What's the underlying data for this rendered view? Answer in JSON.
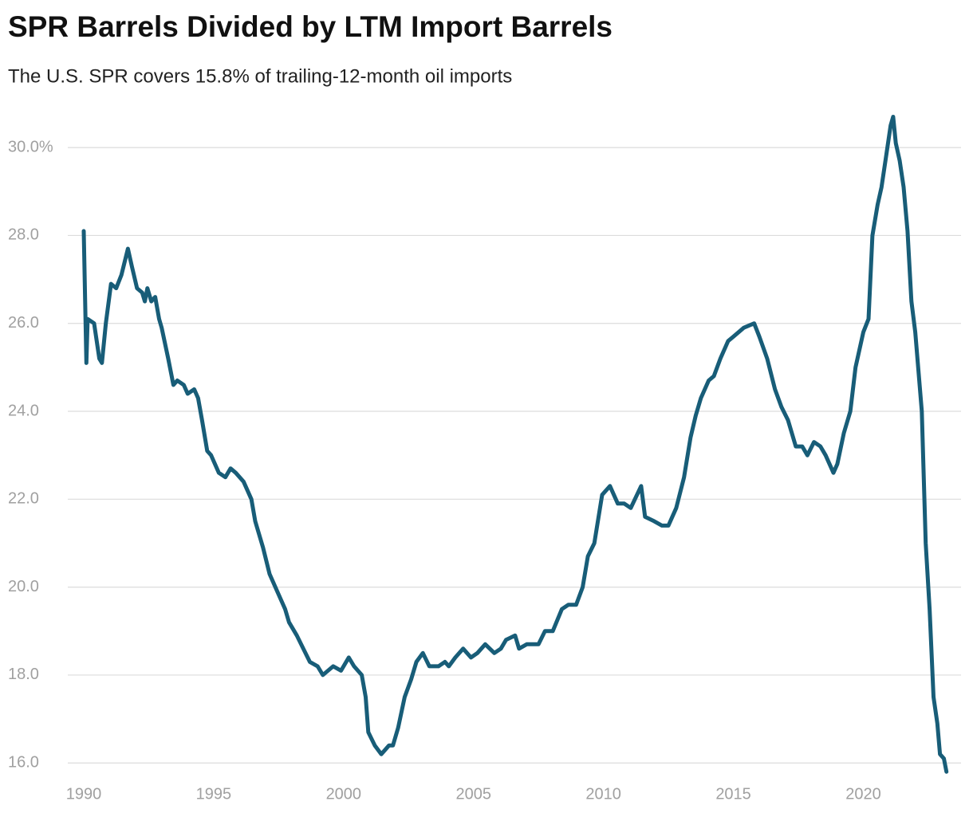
{
  "chart_data": {
    "type": "line",
    "title": "SPR Barrels Divided by LTM Import Barrels",
    "subtitle": "The U.S. SPR covers 15.8% of trailing-12-month oil imports",
    "x": [
      1990.0,
      1990.1,
      1990.15,
      1990.4,
      1990.6,
      1990.7,
      1990.85,
      1991.05,
      1991.25,
      1991.45,
      1991.7,
      1991.85,
      1992.05,
      1992.25,
      1992.35,
      1992.45,
      1992.6,
      1992.75,
      1992.9,
      1993.0,
      1993.25,
      1993.45,
      1993.6,
      1993.85,
      1994.0,
      1994.25,
      1994.4,
      1994.55,
      1994.75,
      1994.9,
      1995.2,
      1995.45,
      1995.65,
      1995.85,
      1996.15,
      1996.45,
      1996.6,
      1996.9,
      1997.15,
      1997.45,
      1997.75,
      1997.9,
      1998.2,
      1998.45,
      1998.7,
      1999.0,
      1999.2,
      1999.6,
      1999.9,
      2000.2,
      2000.4,
      2000.7,
      2000.85,
      2000.95,
      2001.2,
      2001.45,
      2001.75,
      2001.9,
      2002.1,
      2002.35,
      2002.6,
      2002.8,
      2003.05,
      2003.3,
      2003.65,
      2003.9,
      2004.05,
      2004.3,
      2004.6,
      2004.9,
      2005.15,
      2005.45,
      2005.8,
      2006.05,
      2006.25,
      2006.6,
      2006.75,
      2007.05,
      2007.5,
      2007.75,
      2008.05,
      2008.4,
      2008.65,
      2008.95,
      2009.2,
      2009.4,
      2009.65,
      2009.95,
      2010.25,
      2010.55,
      2010.8,
      2011.05,
      2011.45,
      2011.6,
      2011.95,
      2012.25,
      2012.5,
      2012.8,
      2013.1,
      2013.35,
      2013.55,
      2013.75,
      2014.05,
      2014.25,
      2014.5,
      2014.8,
      2015.0,
      2015.4,
      2015.8,
      2016.0,
      2016.3,
      2016.6,
      2016.85,
      2017.1,
      2017.4,
      2017.65,
      2017.85,
      2018.1,
      2018.35,
      2018.55,
      2018.85,
      2019.0,
      2019.25,
      2019.5,
      2019.7,
      2020.0,
      2020.2,
      2020.35,
      2020.55,
      2020.7,
      2020.85,
      2021.05,
      2021.15,
      2021.25,
      2021.4,
      2021.55,
      2021.7,
      2021.85,
      2022.0,
      2022.25,
      2022.4,
      2022.55,
      2022.7,
      2022.85,
      2022.95,
      2023.1,
      2023.2
    ],
    "series": [
      {
        "color": "#185d78",
        "values": [
          28.1,
          25.1,
          26.1,
          26.0,
          25.2,
          25.1,
          26.0,
          26.9,
          26.8,
          27.1,
          27.7,
          27.3,
          26.8,
          26.7,
          26.5,
          26.8,
          26.5,
          26.6,
          26.1,
          25.9,
          25.2,
          24.6,
          24.7,
          24.6,
          24.4,
          24.5,
          24.3,
          23.8,
          23.1,
          23.0,
          22.6,
          22.5,
          22.7,
          22.6,
          22.4,
          22.0,
          21.5,
          20.9,
          20.3,
          19.9,
          19.5,
          19.2,
          18.9,
          18.6,
          18.3,
          18.2,
          18.0,
          18.2,
          18.1,
          18.4,
          18.2,
          18.0,
          17.5,
          16.7,
          16.4,
          16.2,
          16.4,
          16.4,
          16.8,
          17.5,
          17.9,
          18.3,
          18.5,
          18.2,
          18.2,
          18.3,
          18.2,
          18.4,
          18.6,
          18.4,
          18.5,
          18.7,
          18.5,
          18.6,
          18.8,
          18.9,
          18.6,
          18.7,
          18.7,
          19.0,
          19.0,
          19.5,
          19.6,
          19.6,
          20.0,
          20.7,
          21.0,
          22.1,
          22.3,
          21.9,
          21.9,
          21.8,
          22.3,
          21.6,
          21.5,
          21.4,
          21.4,
          21.8,
          22.5,
          23.4,
          23.9,
          24.3,
          24.7,
          24.8,
          25.2,
          25.6,
          25.7,
          25.9,
          26.0,
          25.7,
          25.2,
          24.5,
          24.1,
          23.8,
          23.2,
          23.2,
          23.0,
          23.3,
          23.2,
          23.0,
          22.6,
          22.8,
          23.5,
          24.0,
          25.0,
          25.8,
          26.1,
          28.0,
          28.7,
          29.1,
          29.7,
          30.5,
          30.7,
          30.1,
          29.7,
          29.1,
          28.1,
          26.5,
          25.8,
          24.0,
          21.0,
          19.5,
          17.5,
          16.9,
          16.2,
          16.1,
          15.8
        ]
      }
    ],
    "xlim": [
      1990,
      2023.3
    ],
    "xticks": [
      1990,
      1995,
      2000,
      2005,
      2010,
      2015,
      2020
    ],
    "ylim": [
      15.75,
      30.8
    ],
    "yticks": [
      {
        "value": 16,
        "label": "16.0"
      },
      {
        "value": 18,
        "label": "18.0"
      },
      {
        "value": 20,
        "label": "20.0"
      },
      {
        "value": 22,
        "label": "22.0"
      },
      {
        "value": 24,
        "label": "24.0"
      },
      {
        "value": 26,
        "label": "26.0"
      },
      {
        "value": 28,
        "label": "28.0"
      },
      {
        "value": 30,
        "label": "30.0%"
      }
    ],
    "grid": true
  }
}
